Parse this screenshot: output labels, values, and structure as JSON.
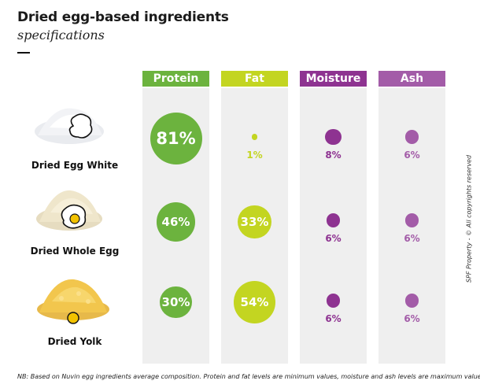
{
  "title": "Dried egg-based ingredients",
  "subtitle": "specifications",
  "copyright": "SPF Property - © All copyrights reserved",
  "note": "NB: Based on Nuvin egg ingredients average composition. Protein and fat levels are minimum values, moisture and ash levels are maximum values.",
  "colors": {
    "protein": "#6cb33e",
    "fat": "#c3d521",
    "moisture": "#8e3391",
    "ash": "#a35ca8"
  },
  "icons": {
    "egg_white": "egg-white-outline-icon",
    "whole_egg": "fried-egg-icon",
    "yolk": "egg-yolk-icon"
  },
  "chart_data": {
    "type": "bubble-matrix",
    "columns": [
      "Protein",
      "Fat",
      "Moisture",
      "Ash"
    ],
    "rows": [
      "Dried Egg White",
      "Dried Whole Egg",
      "Dried Yolk"
    ],
    "unit": "%",
    "values": [
      [
        81,
        1,
        8,
        6
      ],
      [
        46,
        33,
        6,
        6
      ],
      [
        30,
        54,
        6,
        6
      ]
    ],
    "labels": [
      [
        "81%",
        "1%",
        "8%",
        "6%"
      ],
      [
        "46%",
        "33%",
        "6%",
        "6%"
      ],
      [
        "30%",
        "54%",
        "6%",
        "6%"
      ]
    ]
  }
}
